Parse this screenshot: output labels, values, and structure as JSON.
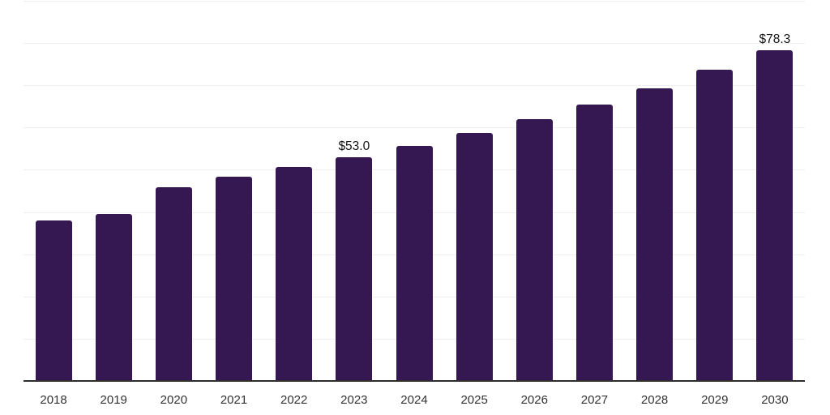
{
  "chart_data": {
    "type": "bar",
    "categories": [
      "2018",
      "2019",
      "2020",
      "2021",
      "2022",
      "2023",
      "2024",
      "2025",
      "2026",
      "2027",
      "2028",
      "2029",
      "2030"
    ],
    "values": [
      38.0,
      39.6,
      45.8,
      48.4,
      50.6,
      53.0,
      55.7,
      58.8,
      62.0,
      65.4,
      69.2,
      73.7,
      78.3
    ],
    "series_name": "value",
    "title": "",
    "xlabel": "",
    "ylabel": "",
    "ylim": [
      0,
      90
    ],
    "gridline_step": 10,
    "grid": "horizontal",
    "legend": "none",
    "annotations": [
      {
        "category": "2023",
        "label": "$53.0"
      },
      {
        "category": "2030",
        "label": "$78.3"
      }
    ],
    "value_prefix": "$"
  },
  "colors": {
    "bar": "#351852",
    "grid": "#efefef",
    "axis": "#2e2e2e",
    "tick_label": "#333333",
    "data_label": "#141414",
    "background": "#ffffff"
  }
}
